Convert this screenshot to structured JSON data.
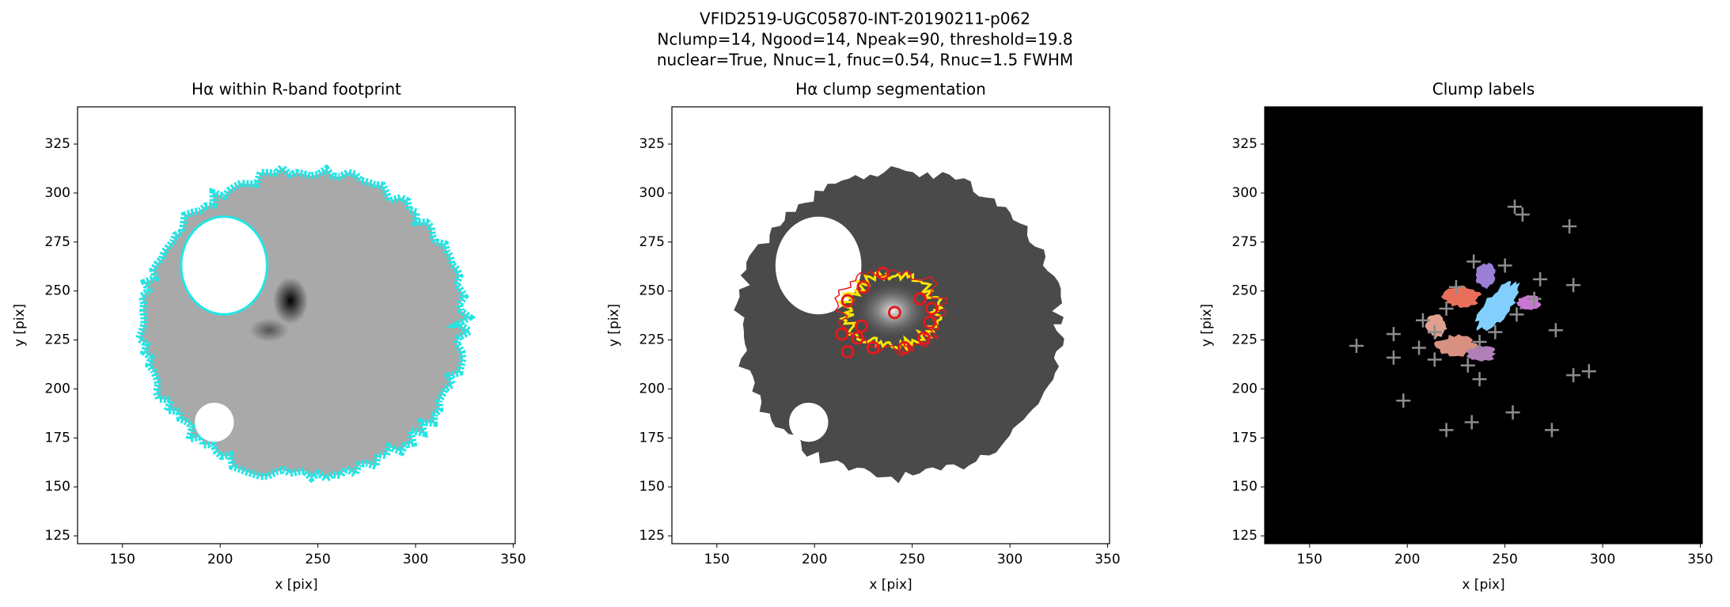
{
  "suptitle": [
    "VFID2519-UGC05870-INT-20190211-p062",
    "Nclump=14, Ngood=14, Npeak=90, threshold=19.8",
    "nuclear=True, Nnuc=1, fnuc=0.54, Rnuc=1.5 FWHM"
  ],
  "chart_data": [
    {
      "type": "image",
      "title": "Hα within R-band footprint",
      "xlabel": "x [pix]",
      "ylabel": "y [pix]",
      "xlim": [
        127,
        351
      ],
      "ylim": [
        121,
        344
      ],
      "xticks": [
        150,
        200,
        250,
        300,
        350
      ],
      "yticks": [
        125,
        150,
        175,
        200,
        225,
        250,
        275,
        300,
        325
      ]
    },
    {
      "type": "image",
      "title": "Hα clump segmentation",
      "xlabel": "x [pix]",
      "ylabel": "y [pix]",
      "xlim": [
        127,
        351
      ],
      "ylim": [
        121,
        344
      ],
      "xticks": [
        150,
        200,
        250,
        300,
        350
      ],
      "yticks": [
        125,
        150,
        175,
        200,
        225,
        250,
        275,
        300,
        325
      ],
      "points": {
        "x": [
          217,
          225,
          235,
          254,
          260,
          259,
          256,
          246,
          230,
          224,
          222,
          217,
          214,
          241
        ],
        "y": [
          245,
          252,
          259,
          246,
          241,
          234,
          226,
          221,
          221,
          232,
          226,
          219,
          228,
          239
        ],
        "color": "#e41a1c"
      }
    },
    {
      "type": "image",
      "title": "Clump labels",
      "xlabel": "x [pix]",
      "ylabel": "y [pix]",
      "xlim": [
        127,
        351
      ],
      "ylim": [
        121,
        344
      ],
      "xticks": [
        150,
        200,
        250,
        300,
        350
      ],
      "yticks": [
        125,
        150,
        175,
        200,
        225,
        250,
        275,
        300,
        325
      ],
      "points": {
        "x": [
          174,
          193,
          193,
          198,
          220,
          233,
          237,
          254,
          274,
          276,
          285,
          293,
          285,
          283,
          255,
          259,
          208,
          214,
          220,
          225,
          237,
          245,
          256,
          265,
          268,
          250,
          234,
          214,
          206,
          231
        ],
        "y": [
          222,
          228,
          216,
          194,
          179,
          183,
          205,
          188,
          179,
          230,
          207,
          209,
          253,
          283,
          293,
          289,
          235,
          229,
          241,
          252,
          224,
          229,
          238,
          246,
          256,
          263,
          265,
          215,
          221,
          212
        ],
        "color": "#8c8c8c"
      }
    }
  ]
}
